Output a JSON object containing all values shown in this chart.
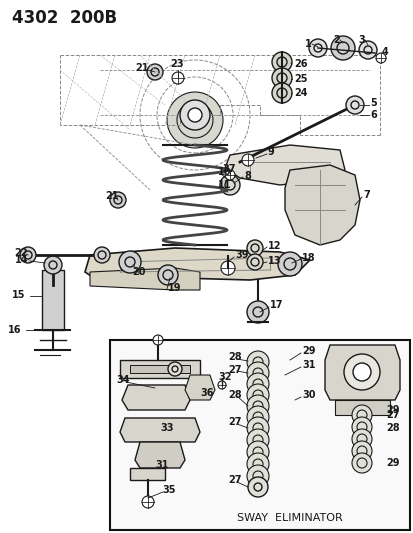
{
  "title": "4302  200B",
  "background_color": "#ffffff",
  "fig_width": 4.14,
  "fig_height": 5.33,
  "dpi": 100,
  "sway_eliminator_text": "SWAY  ELIMINATOR"
}
